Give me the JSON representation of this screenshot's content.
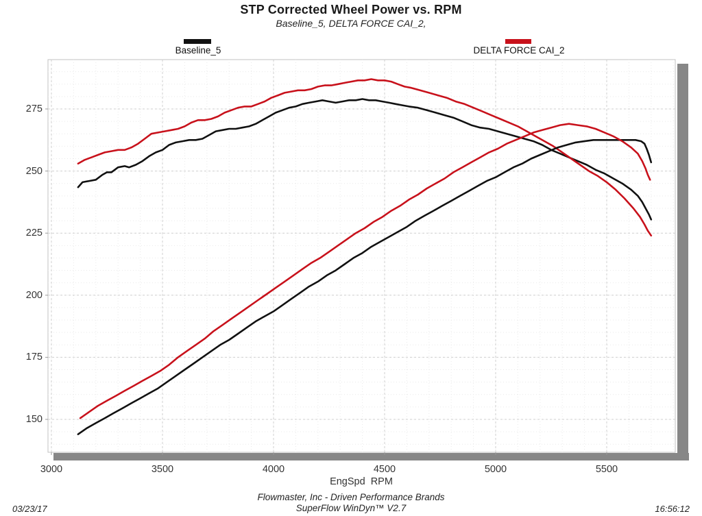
{
  "title": "STP Corrected Wheel Power vs. RPM",
  "subtitle": "Baseline_5, DELTA FORCE CAI_2,",
  "legend": {
    "items": [
      {
        "label": "Baseline_5",
        "color": "#111111"
      },
      {
        "label": "DELTA FORCE CAI_2",
        "color": "#c8111b"
      }
    ]
  },
  "footer": {
    "line1": "Flowmaster, Inc - Driven Performance Brands",
    "line2": "SuperFlow WinDyn™ V2.7",
    "date": "03/23/17",
    "time": "16:56:12"
  },
  "chart_data": {
    "type": "line",
    "title": "STP Corrected Wheel Power vs. RPM",
    "subtitle": "Baseline_5, DELTA FORCE CAI_2,",
    "xlabel": "EngSpd RPM",
    "ylabel": "",
    "xlim": [
      2985,
      5810
    ],
    "ylim": [
      137,
      295
    ],
    "x_ticks": [
      3000,
      3500,
      4000,
      4500,
      5000,
      5500
    ],
    "y_ticks": [
      150,
      175,
      200,
      225,
      250,
      275
    ],
    "x_minor_step": 100,
    "y_minor_step": 5,
    "grid": "major and minor, dashed light gray",
    "legend_position": "top",
    "colors": {
      "baseline": "#111111",
      "delta_force": "#c8111b",
      "shadow": "#878787"
    },
    "series": [
      {
        "name": "Baseline_5",
        "role": "upper-curve (torque)",
        "color": "#111111",
        "points": [
          [
            3120,
            243.5
          ],
          [
            3140,
            245.5
          ],
          [
            3170,
            246
          ],
          [
            3200,
            246.5
          ],
          [
            3230,
            248.5
          ],
          [
            3250,
            249.5
          ],
          [
            3270,
            249.5
          ],
          [
            3300,
            251.5
          ],
          [
            3330,
            252
          ],
          [
            3350,
            251.5
          ],
          [
            3380,
            252.5
          ],
          [
            3410,
            254
          ],
          [
            3440,
            256
          ],
          [
            3470,
            257.5
          ],
          [
            3500,
            258.5
          ],
          [
            3530,
            260.5
          ],
          [
            3560,
            261.5
          ],
          [
            3590,
            262
          ],
          [
            3620,
            262.5
          ],
          [
            3650,
            262.5
          ],
          [
            3680,
            263
          ],
          [
            3710,
            264.5
          ],
          [
            3740,
            266
          ],
          [
            3770,
            266.5
          ],
          [
            3800,
            267
          ],
          [
            3830,
            267
          ],
          [
            3860,
            267.5
          ],
          [
            3890,
            268
          ],
          [
            3920,
            269
          ],
          [
            3950,
            270.5
          ],
          [
            3980,
            272
          ],
          [
            4010,
            273.5
          ],
          [
            4040,
            274.5
          ],
          [
            4070,
            275.5
          ],
          [
            4100,
            276
          ],
          [
            4130,
            277
          ],
          [
            4160,
            277.5
          ],
          [
            4190,
            278
          ],
          [
            4220,
            278.5
          ],
          [
            4250,
            278
          ],
          [
            4280,
            277.5
          ],
          [
            4310,
            278
          ],
          [
            4340,
            278.5
          ],
          [
            4370,
            278.5
          ],
          [
            4400,
            279
          ],
          [
            4430,
            278.5
          ],
          [
            4460,
            278.5
          ],
          [
            4490,
            278
          ],
          [
            4520,
            277.5
          ],
          [
            4550,
            277
          ],
          [
            4580,
            276.5
          ],
          [
            4610,
            276
          ],
          [
            4650,
            275.5
          ],
          [
            4690,
            274.5
          ],
          [
            4730,
            273.5
          ],
          [
            4770,
            272.5
          ],
          [
            4810,
            271.5
          ],
          [
            4850,
            270
          ],
          [
            4890,
            268.5
          ],
          [
            4930,
            267.5
          ],
          [
            4970,
            267
          ],
          [
            5010,
            266
          ],
          [
            5050,
            265
          ],
          [
            5090,
            264
          ],
          [
            5130,
            263
          ],
          [
            5170,
            262
          ],
          [
            5210,
            260.5
          ],
          [
            5250,
            258.5
          ],
          [
            5290,
            257
          ],
          [
            5330,
            255.5
          ],
          [
            5370,
            254
          ],
          [
            5410,
            252.5
          ],
          [
            5450,
            250.5
          ],
          [
            5490,
            249
          ],
          [
            5530,
            247
          ],
          [
            5570,
            245
          ],
          [
            5610,
            242.5
          ],
          [
            5640,
            240
          ],
          [
            5660,
            237.5
          ],
          [
            5675,
            235
          ],
          [
            5690,
            232.5
          ],
          [
            5700,
            230.5
          ]
        ]
      },
      {
        "name": "DELTA FORCE CAI_2",
        "role": "upper-curve (torque)",
        "color": "#c8111b",
        "points": [
          [
            3120,
            253
          ],
          [
            3150,
            254.5
          ],
          [
            3180,
            255.5
          ],
          [
            3210,
            256.5
          ],
          [
            3240,
            257.5
          ],
          [
            3270,
            258
          ],
          [
            3300,
            258.5
          ],
          [
            3330,
            258.5
          ],
          [
            3360,
            259.5
          ],
          [
            3390,
            261
          ],
          [
            3420,
            263
          ],
          [
            3450,
            265
          ],
          [
            3480,
            265.5
          ],
          [
            3510,
            266
          ],
          [
            3540,
            266.5
          ],
          [
            3570,
            267
          ],
          [
            3600,
            268
          ],
          [
            3630,
            269.5
          ],
          [
            3660,
            270.5
          ],
          [
            3690,
            270.5
          ],
          [
            3720,
            271
          ],
          [
            3750,
            272
          ],
          [
            3780,
            273.5
          ],
          [
            3810,
            274.5
          ],
          [
            3840,
            275.5
          ],
          [
            3870,
            276
          ],
          [
            3900,
            276
          ],
          [
            3930,
            277
          ],
          [
            3960,
            278
          ],
          [
            3990,
            279.5
          ],
          [
            4020,
            280.5
          ],
          [
            4050,
            281.5
          ],
          [
            4080,
            282
          ],
          [
            4110,
            282.5
          ],
          [
            4140,
            282.5
          ],
          [
            4170,
            283
          ],
          [
            4200,
            284
          ],
          [
            4230,
            284.5
          ],
          [
            4260,
            284.5
          ],
          [
            4290,
            285
          ],
          [
            4320,
            285.5
          ],
          [
            4350,
            286
          ],
          [
            4380,
            286.5
          ],
          [
            4410,
            286.5
          ],
          [
            4440,
            287
          ],
          [
            4470,
            286.5
          ],
          [
            4500,
            286.5
          ],
          [
            4530,
            286
          ],
          [
            4560,
            285
          ],
          [
            4590,
            284
          ],
          [
            4620,
            283.5
          ],
          [
            4660,
            282.5
          ],
          [
            4700,
            281.5
          ],
          [
            4740,
            280.5
          ],
          [
            4780,
            279.5
          ],
          [
            4820,
            278
          ],
          [
            4860,
            277
          ],
          [
            4900,
            275.5
          ],
          [
            4940,
            274
          ],
          [
            4980,
            272.5
          ],
          [
            5020,
            271
          ],
          [
            5060,
            269.5
          ],
          [
            5100,
            268
          ],
          [
            5140,
            266
          ],
          [
            5180,
            264
          ],
          [
            5220,
            262
          ],
          [
            5260,
            260
          ],
          [
            5300,
            257.5
          ],
          [
            5340,
            255
          ],
          [
            5380,
            252.5
          ],
          [
            5420,
            250
          ],
          [
            5460,
            248
          ],
          [
            5500,
            245.5
          ],
          [
            5540,
            242.5
          ],
          [
            5580,
            239
          ],
          [
            5620,
            235
          ],
          [
            5650,
            231.5
          ],
          [
            5670,
            228.5
          ],
          [
            5685,
            226
          ],
          [
            5700,
            224
          ]
        ]
      },
      {
        "name": "Baseline_5",
        "role": "lower-curve (power)",
        "color": "#111111",
        "points": [
          [
            3120,
            144
          ],
          [
            3160,
            146.5
          ],
          [
            3200,
            148.5
          ],
          [
            3240,
            150.5
          ],
          [
            3280,
            152.5
          ],
          [
            3320,
            154.5
          ],
          [
            3360,
            156.5
          ],
          [
            3400,
            158.5
          ],
          [
            3440,
            160.5
          ],
          [
            3480,
            162.5
          ],
          [
            3520,
            165
          ],
          [
            3560,
            167.5
          ],
          [
            3600,
            170
          ],
          [
            3640,
            172.5
          ],
          [
            3680,
            175
          ],
          [
            3720,
            177.5
          ],
          [
            3760,
            180
          ],
          [
            3800,
            182
          ],
          [
            3840,
            184.5
          ],
          [
            3880,
            187
          ],
          [
            3920,
            189.5
          ],
          [
            3960,
            191.5
          ],
          [
            4000,
            193.5
          ],
          [
            4040,
            196
          ],
          [
            4080,
            198.5
          ],
          [
            4120,
            201
          ],
          [
            4160,
            203.5
          ],
          [
            4200,
            205.5
          ],
          [
            4240,
            208
          ],
          [
            4280,
            210
          ],
          [
            4320,
            212.5
          ],
          [
            4360,
            215
          ],
          [
            4400,
            217
          ],
          [
            4440,
            219.5
          ],
          [
            4480,
            221.5
          ],
          [
            4520,
            223.5
          ],
          [
            4560,
            225.5
          ],
          [
            4600,
            227.5
          ],
          [
            4640,
            230
          ],
          [
            4680,
            232
          ],
          [
            4720,
            234
          ],
          [
            4760,
            236
          ],
          [
            4800,
            238
          ],
          [
            4840,
            240
          ],
          [
            4880,
            242
          ],
          [
            4920,
            244
          ],
          [
            4960,
            246
          ],
          [
            5000,
            247.5
          ],
          [
            5040,
            249.5
          ],
          [
            5080,
            251.5
          ],
          [
            5120,
            253
          ],
          [
            5160,
            255
          ],
          [
            5200,
            256.5
          ],
          [
            5240,
            258
          ],
          [
            5280,
            259.5
          ],
          [
            5320,
            260.5
          ],
          [
            5360,
            261.5
          ],
          [
            5400,
            262
          ],
          [
            5440,
            262.5
          ],
          [
            5480,
            262.5
          ],
          [
            5520,
            262.5
          ],
          [
            5560,
            262.5
          ],
          [
            5600,
            262.5
          ],
          [
            5630,
            262.5
          ],
          [
            5655,
            262
          ],
          [
            5670,
            261
          ],
          [
            5680,
            259
          ],
          [
            5690,
            256.5
          ],
          [
            5700,
            253.5
          ]
        ]
      },
      {
        "name": "DELTA FORCE CAI_2",
        "role": "lower-curve (power)",
        "color": "#c8111b",
        "points": [
          [
            3130,
            150.5
          ],
          [
            3170,
            153
          ],
          [
            3210,
            155.5
          ],
          [
            3250,
            157.5
          ],
          [
            3290,
            159.5
          ],
          [
            3330,
            161.5
          ],
          [
            3370,
            163.5
          ],
          [
            3410,
            165.5
          ],
          [
            3450,
            167.5
          ],
          [
            3490,
            169.5
          ],
          [
            3530,
            172
          ],
          [
            3570,
            175
          ],
          [
            3610,
            177.5
          ],
          [
            3650,
            180
          ],
          [
            3690,
            182.5
          ],
          [
            3730,
            185.5
          ],
          [
            3770,
            188
          ],
          [
            3810,
            190.5
          ],
          [
            3850,
            193
          ],
          [
            3890,
            195.5
          ],
          [
            3930,
            198
          ],
          [
            3970,
            200.5
          ],
          [
            4010,
            203
          ],
          [
            4050,
            205.5
          ],
          [
            4090,
            208
          ],
          [
            4130,
            210.5
          ],
          [
            4170,
            213
          ],
          [
            4210,
            215
          ],
          [
            4250,
            217.5
          ],
          [
            4290,
            220
          ],
          [
            4330,
            222.5
          ],
          [
            4370,
            225
          ],
          [
            4410,
            227
          ],
          [
            4450,
            229.5
          ],
          [
            4490,
            231.5
          ],
          [
            4530,
            234
          ],
          [
            4570,
            236
          ],
          [
            4610,
            238.5
          ],
          [
            4650,
            240.5
          ],
          [
            4690,
            243
          ],
          [
            4730,
            245
          ],
          [
            4770,
            247
          ],
          [
            4810,
            249.5
          ],
          [
            4850,
            251.5
          ],
          [
            4890,
            253.5
          ],
          [
            4930,
            255.5
          ],
          [
            4970,
            257.5
          ],
          [
            5010,
            259
          ],
          [
            5050,
            261
          ],
          [
            5090,
            262.5
          ],
          [
            5130,
            264
          ],
          [
            5170,
            265.5
          ],
          [
            5210,
            266.5
          ],
          [
            5250,
            267.5
          ],
          [
            5290,
            268.5
          ],
          [
            5330,
            269
          ],
          [
            5370,
            268.5
          ],
          [
            5410,
            268
          ],
          [
            5450,
            267
          ],
          [
            5490,
            265.5
          ],
          [
            5530,
            264
          ],
          [
            5570,
            262
          ],
          [
            5610,
            259.5
          ],
          [
            5640,
            257
          ],
          [
            5660,
            254
          ],
          [
            5675,
            251
          ],
          [
            5685,
            248.5
          ],
          [
            5695,
            246.5
          ]
        ]
      }
    ]
  }
}
